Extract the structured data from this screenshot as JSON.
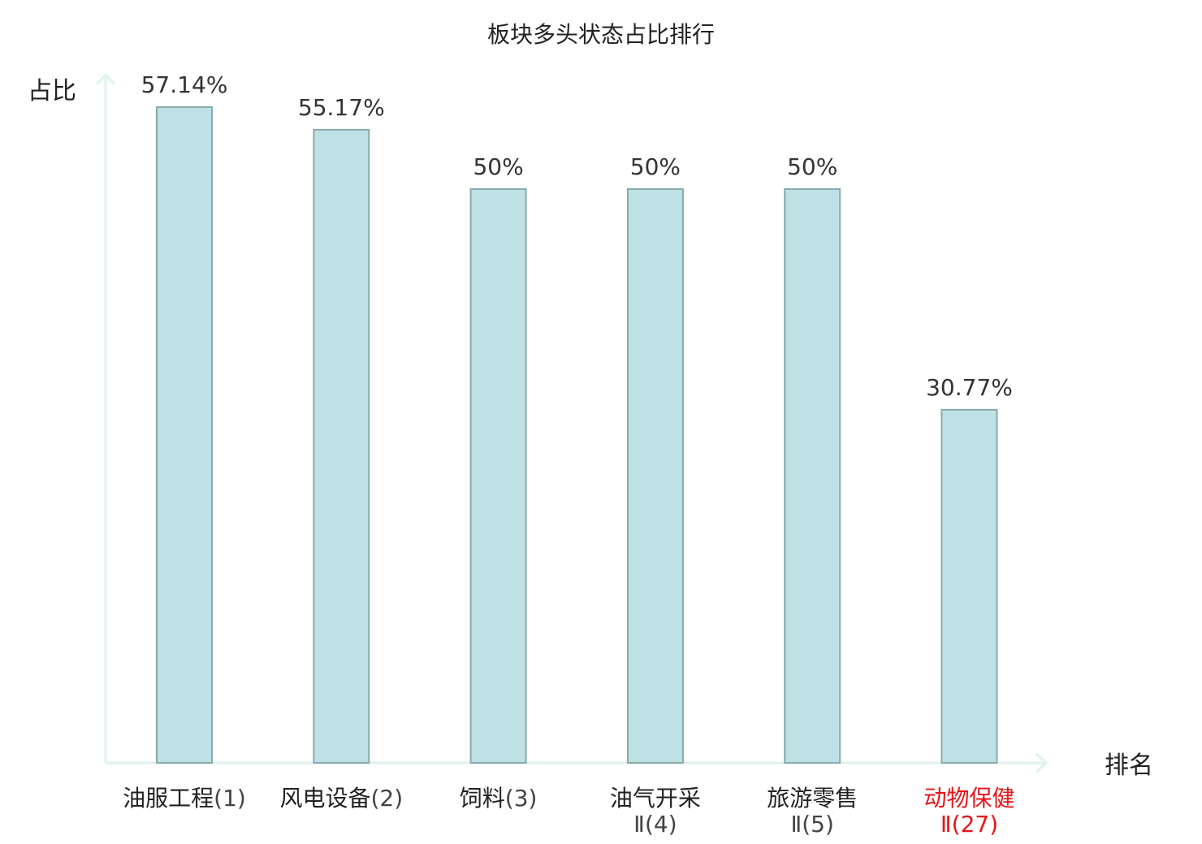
{
  "chart_data": {
    "type": "bar",
    "title": "板块多头状态占比排行",
    "ylabel": "占比",
    "xlabel": "排名",
    "ylim": [
      0,
      60
    ],
    "grid": false,
    "categories": [
      {
        "name_lines": [
          "油服工程"
        ],
        "rank": "(1)",
        "highlight": false
      },
      {
        "name_lines": [
          "风电设备"
        ],
        "rank": "(2)",
        "highlight": false
      },
      {
        "name_lines": [
          "饲料"
        ],
        "rank": "(3)",
        "highlight": false
      },
      {
        "name_lines": [
          "油气开采",
          "Ⅱ"
        ],
        "rank": "(4)",
        "highlight": false
      },
      {
        "name_lines": [
          "旅游零售",
          "Ⅱ"
        ],
        "rank": "(5)",
        "highlight": false
      },
      {
        "name_lines": [
          "动物保健",
          "Ⅱ"
        ],
        "rank": "(27)",
        "highlight": true
      }
    ],
    "values": [
      57.14,
      55.17,
      50,
      50,
      50,
      30.77
    ],
    "value_labels": [
      "57.14%",
      "55.17%",
      "50%",
      "50%",
      "50%",
      "30.77%"
    ],
    "colors": {
      "bar_fill": "#bde1e4",
      "bar_stroke": "#8aa9a9",
      "axis": "#e0f2ef",
      "highlight_text": "#e8141a",
      "normal_text": "#222222",
      "rank_text": "#444444"
    }
  }
}
